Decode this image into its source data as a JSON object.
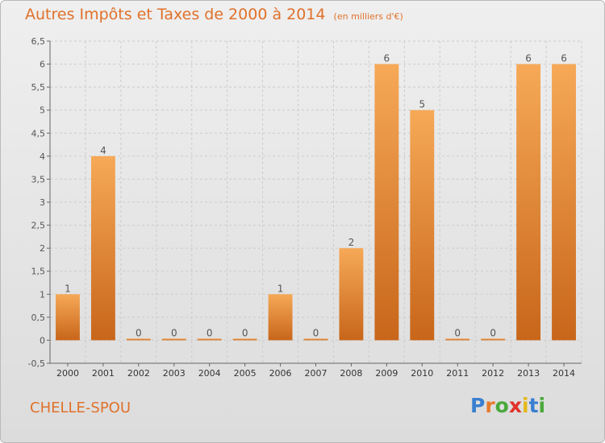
{
  "title": "Autres Impôts et Taxes de 2000 à 2014",
  "subtitle": "(en milliers d'€)",
  "commune": "CHELLE-SPOU",
  "logo": {
    "letters": [
      "P",
      "r",
      "o",
      "x",
      "i",
      "t",
      "i"
    ],
    "colors": [
      "#3a7fd0",
      "#e77a2b",
      "#49a93b",
      "#e0332a",
      "#e5b81c",
      "#3a7fd0",
      "#49a93b"
    ]
  },
  "colors": {
    "bar_light": "#f6a957",
    "bar_dark": "#c8661a",
    "accent": "#e0712a",
    "grid": "#cccccc",
    "axis_text": "#555555"
  },
  "chart_data": {
    "type": "bar",
    "categories": [
      "2000",
      "2001",
      "2002",
      "2003",
      "2004",
      "2005",
      "2006",
      "2007",
      "2008",
      "2009",
      "2010",
      "2011",
      "2012",
      "2013",
      "2014"
    ],
    "values": [
      1,
      4,
      0,
      0,
      0,
      0,
      1,
      0,
      2,
      6,
      5,
      0,
      0,
      6,
      6
    ],
    "ylim": [
      -0.5,
      6.5
    ],
    "yticks": [
      -0.5,
      0,
      0.5,
      1,
      1.5,
      2,
      2.5,
      3,
      3.5,
      4,
      4.5,
      5,
      5.5,
      6,
      6.5
    ],
    "ytick_labels": [
      "-0,5",
      "0",
      "0,5",
      "1",
      "1,5",
      "2",
      "2,5",
      "3",
      "3,5",
      "4",
      "4,5",
      "5",
      "5,5",
      "6",
      "6,5"
    ],
    "grid": true
  }
}
